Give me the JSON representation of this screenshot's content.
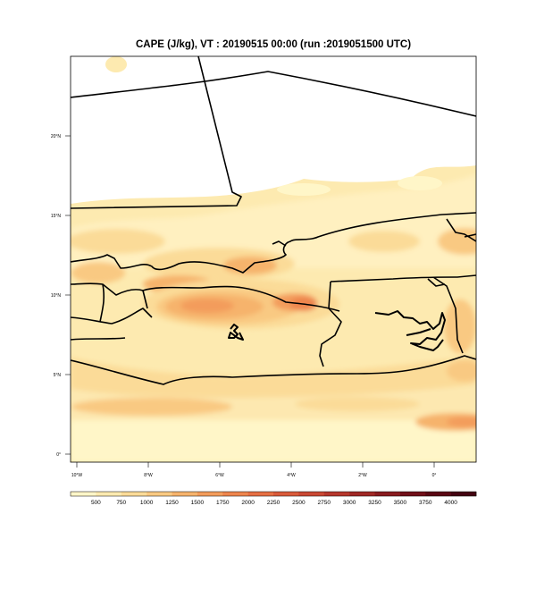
{
  "title": "CAPE (J/kg), VT : 20190515  00:00 (run :2019051500 UTC)",
  "map": {
    "variable": "CAPE",
    "units": "J/kg",
    "region": "West Africa",
    "lon_range": [
      -10.2,
      1.2
    ],
    "lat_range": [
      -0.2,
      25.3
    ],
    "lon_ticks": [
      "10°W",
      "8°W",
      "6°W",
      "4°W",
      "2°W",
      "0°"
    ],
    "lat_ticks": [
      "0°",
      "5°N",
      "10°N",
      "15°N",
      "20°N"
    ]
  },
  "colorbar": {
    "labels": [
      "500",
      "750",
      "1000",
      "1250",
      "1500",
      "1750",
      "2000",
      "2250",
      "2500",
      "2750",
      "3000",
      "3250",
      "3500",
      "3750",
      "4000"
    ],
    "colors": [
      "#fff6c8",
      "#fdeab0",
      "#fbdb98",
      "#f9c982",
      "#f6b36c",
      "#f39c5b",
      "#ee854d",
      "#e66f43",
      "#d95a3a",
      "#c94833",
      "#b6372c",
      "#a02825",
      "#891b1f",
      "#711019",
      "#5a0714",
      "#440312"
    ]
  }
}
